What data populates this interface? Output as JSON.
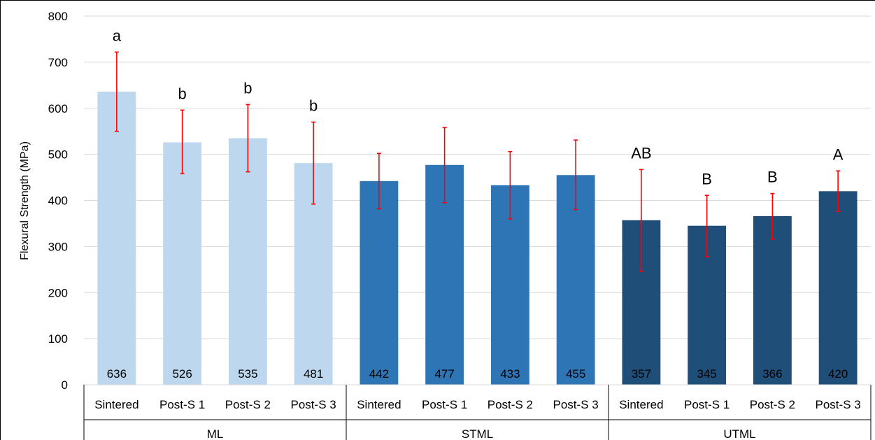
{
  "chart_data": {
    "type": "bar",
    "ylabel": "Flexural Strength (MPa)",
    "ylim": [
      0,
      800
    ],
    "yticks": [
      0,
      100,
      200,
      300,
      400,
      500,
      600,
      700,
      800
    ],
    "grid": true,
    "groups": [
      {
        "name": "ML",
        "color": "#bdd7ee",
        "bars": [
          {
            "category": "Sintered",
            "value": 636,
            "err_low": 550,
            "err_high": 722,
            "letter": "a"
          },
          {
            "category": "Post-S 1",
            "value": 526,
            "err_low": 458,
            "err_high": 596,
            "letter": "b"
          },
          {
            "category": "Post-S 2",
            "value": 535,
            "err_low": 462,
            "err_high": 608,
            "letter": "b"
          },
          {
            "category": "Post-S 3",
            "value": 481,
            "err_low": 392,
            "err_high": 570,
            "letter": "b"
          }
        ]
      },
      {
        "name": "STML",
        "color": "#2e75b6",
        "bars": [
          {
            "category": "Sintered",
            "value": 442,
            "err_low": 382,
            "err_high": 502,
            "letter": ""
          },
          {
            "category": "Post-S 1",
            "value": 477,
            "err_low": 395,
            "err_high": 558,
            "letter": ""
          },
          {
            "category": "Post-S 2",
            "value": 433,
            "err_low": 360,
            "err_high": 506,
            "letter": ""
          },
          {
            "category": "Post-S 3",
            "value": 455,
            "err_low": 380,
            "err_high": 531,
            "letter": ""
          }
        ]
      },
      {
        "name": "UTML",
        "color": "#1f4e79",
        "bars": [
          {
            "category": "Sintered",
            "value": 357,
            "err_low": 246,
            "err_high": 467,
            "letter": "AB"
          },
          {
            "category": "Post-S 1",
            "value": 345,
            "err_low": 278,
            "err_high": 411,
            "letter": "B"
          },
          {
            "category": "Post-S 2",
            "value": 366,
            "err_low": 316,
            "err_high": 415,
            "letter": "B"
          },
          {
            "category": "Post-S 3",
            "value": 420,
            "err_low": 376,
            "err_high": 464,
            "letter": "A"
          }
        ]
      }
    ],
    "colors": {
      "error_bar": "#ff0000",
      "grid": "#d9d9d9",
      "text": "#000000"
    }
  }
}
